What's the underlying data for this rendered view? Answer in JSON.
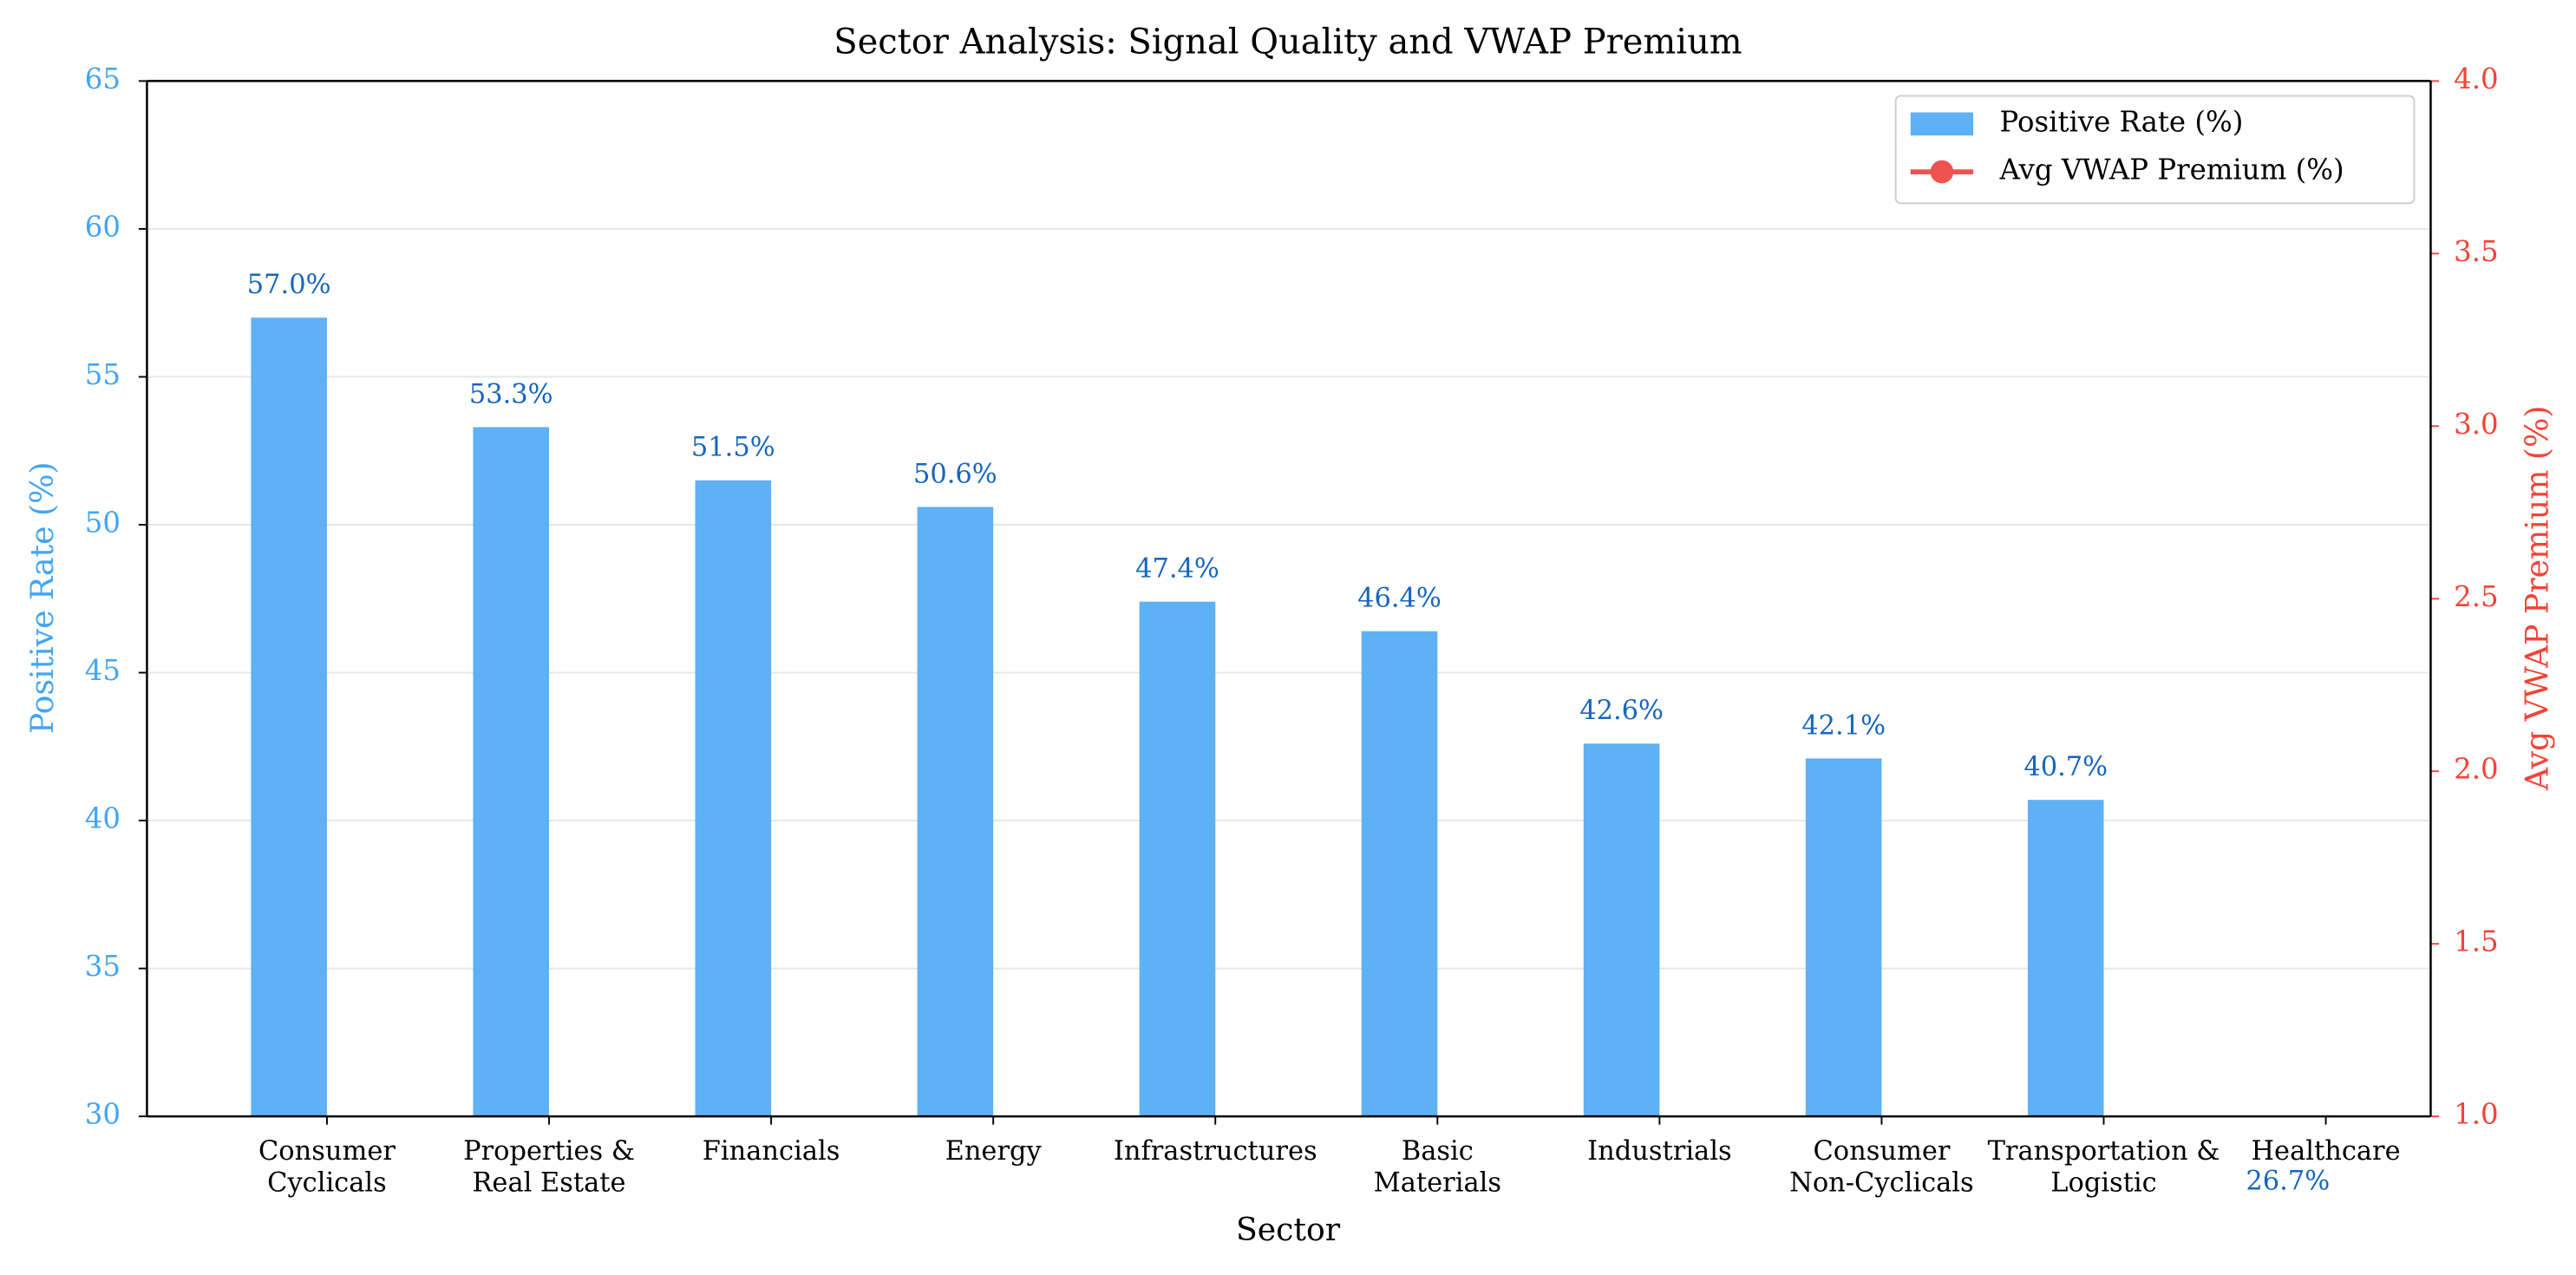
{
  "chart_data": {
    "type": "bar",
    "title": "Sector Analysis: Signal Quality and VWAP Premium",
    "xlabel": "Sector",
    "ylabel": "Positive Rate (%)",
    "y2label": "Avg VWAP Premium (%)",
    "categories": [
      "Consumer\nCyclicals",
      "Properties &\nReal Estate",
      "Financials",
      "Energy",
      "Infrastructures",
      "Basic\nMaterials",
      "Industrials",
      "Consumer\nNon-Cyclicals",
      "Transportation &\nLogistic",
      "Healthcare"
    ],
    "series": [
      {
        "name": "Positive Rate (%)",
        "color": "#5eb1f4",
        "label_color": "#1565c0",
        "values": [
          57.0,
          53.3,
          51.5,
          50.6,
          47.4,
          46.4,
          42.6,
          42.1,
          40.7,
          26.7
        ],
        "value_labels": [
          "57.0%",
          "53.3%",
          "51.5%",
          "50.6%",
          "47.4%",
          "46.4%",
          "42.6%",
          "42.1%",
          "40.7%",
          "26.7%"
        ]
      },
      {
        "name": "Avg VWAP Premium (%)",
        "color": "#ef5350",
        "axis": "y2",
        "values": [
          null,
          null,
          null,
          null,
          null,
          null,
          null,
          null,
          null,
          null
        ]
      }
    ],
    "ylim": [
      30,
      65
    ],
    "yticks": [
      30,
      35,
      40,
      45,
      50,
      55,
      60,
      65
    ],
    "y2lim": [
      1.0,
      4.0
    ],
    "y2ticks": [
      {
        "value": 1.0,
        "label": "1.0"
      },
      {
        "value": 1.5,
        "label": "1.5"
      },
      {
        "value": 2.0,
        "label": "2.0"
      },
      {
        "value": 2.5,
        "label": "2.5"
      },
      {
        "value": 3.0,
        "label": "3.0"
      },
      {
        "value": 3.5,
        "label": "3.5"
      },
      {
        "value": 4.0,
        "label": "4.0"
      }
    ],
    "y_color": "#42a5f5",
    "y2_color": "#f44336",
    "grid": true,
    "legend": "upper right"
  }
}
